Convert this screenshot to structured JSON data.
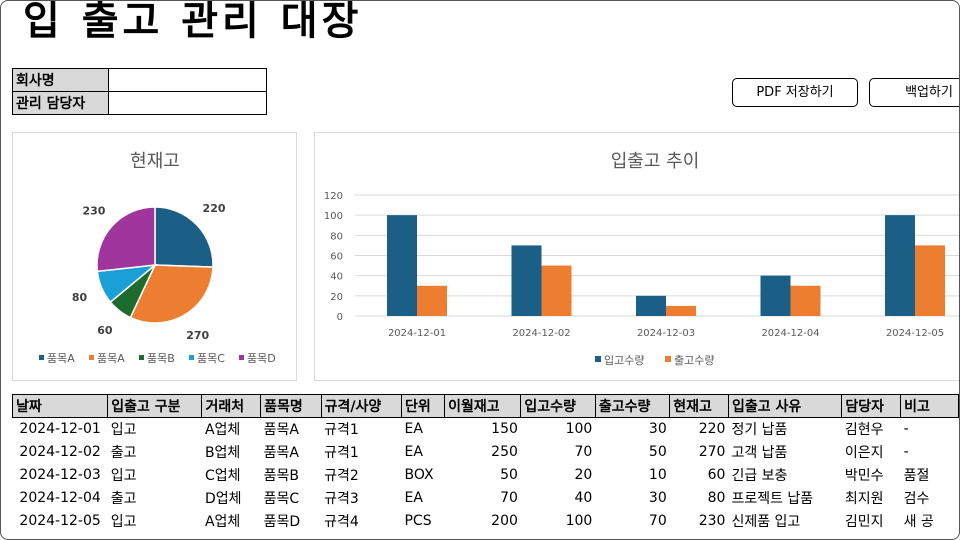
{
  "title": "입 출고 관리 대장",
  "info": {
    "company_label": "회사명",
    "company_value": "",
    "manager_label": "관리 담당자",
    "manager_value": ""
  },
  "buttons": {
    "pdf": "PDF 저장하기",
    "backup": "백업하기"
  },
  "pie_chart": {
    "type": "pie",
    "title": "현재고",
    "labels": [
      "품목A",
      "품목A",
      "품목B",
      "품목C",
      "품목D"
    ],
    "values": [
      220,
      270,
      60,
      80,
      230
    ],
    "colors": [
      "#1b5e86",
      "#ed7d31",
      "#1e6b2f",
      "#1aa0d6",
      "#a1359e"
    ],
    "legend_position": "bottom"
  },
  "bar_chart": {
    "type": "bar",
    "title": "입출고 추이",
    "categories": [
      "2024-12-01",
      "2024-12-02",
      "2024-12-03",
      "2024-12-04",
      "2024-12-05"
    ],
    "series": [
      {
        "name": "입고수량",
        "values": [
          100,
          70,
          20,
          40,
          100
        ],
        "color": "#1b5e86"
      },
      {
        "name": "출고수량",
        "values": [
          30,
          50,
          10,
          30,
          70
        ],
        "color": "#ed7d31"
      }
    ],
    "ylim": [
      0,
      120
    ],
    "yticks": [
      0,
      20,
      40,
      60,
      80,
      100,
      120
    ],
    "grid": true,
    "legend_position": "bottom"
  },
  "table": {
    "headers": [
      "날짜",
      "입출고 구분",
      "거래처",
      "품목명",
      "규격/사양",
      "단위",
      "이월재고",
      "입고수량",
      "출고수량",
      "현재고",
      "입출고 사유",
      "담당자",
      "비고"
    ],
    "rows": [
      [
        "2024-12-01",
        "입고",
        "A업체",
        "품목A",
        "규격1",
        "EA",
        "150",
        "100",
        "30",
        "220",
        "정기 납품",
        "김현우",
        "-"
      ],
      [
        "2024-12-02",
        "출고",
        "B업체",
        "품목A",
        "규격1",
        "EA",
        "250",
        "70",
        "50",
        "270",
        "고객 납품",
        "이은지",
        "-"
      ],
      [
        "2024-12-03",
        "입고",
        "C업체",
        "품목B",
        "규격2",
        "BOX",
        "50",
        "20",
        "10",
        "60",
        "긴급 보충",
        "박민수",
        "품절"
      ],
      [
        "2024-12-04",
        "출고",
        "D업체",
        "품목C",
        "규격3",
        "EA",
        "70",
        "40",
        "30",
        "80",
        "프로젝트 납품",
        "최지원",
        "검수"
      ],
      [
        "2024-12-05",
        "입고",
        "A업체",
        "품목D",
        "규격4",
        "PCS",
        "200",
        "100",
        "70",
        "230",
        "신제품 입고",
        "김민지",
        "새 공"
      ]
    ]
  }
}
